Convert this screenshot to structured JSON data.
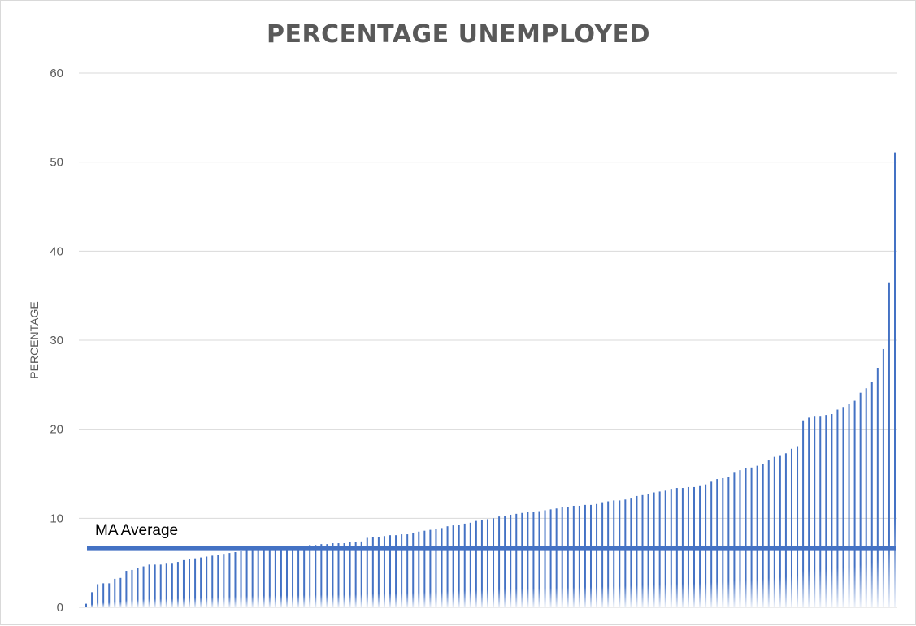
{
  "chart_data": {
    "type": "bar",
    "title": "PERCENTAGE UNEMPLOYED",
    "xlabel": "",
    "ylabel": "PERCENTAGE",
    "ylim": [
      0,
      60
    ],
    "yticks": [
      "0",
      "10",
      "20",
      "30",
      "40",
      "50",
      "60"
    ],
    "grid": true,
    "legend": "none",
    "bar_color": "#4472c4",
    "reference_line": {
      "label": "MA Average",
      "value": 6.6,
      "color": "#4472c4"
    },
    "values": [
      0.4,
      1.7,
      2.6,
      2.7,
      2.7,
      3.2,
      3.3,
      4.1,
      4.2,
      4.4,
      4.6,
      4.8,
      4.8,
      4.8,
      4.9,
      4.9,
      5.1,
      5.3,
      5.4,
      5.5,
      5.6,
      5.7,
      5.8,
      5.9,
      6.0,
      6.1,
      6.2,
      6.3,
      6.4,
      6.5,
      6.6,
      6.6,
      6.6,
      6.6,
      6.7,
      6.7,
      6.8,
      6.8,
      6.9,
      7.0,
      7.0,
      7.1,
      7.1,
      7.2,
      7.2,
      7.2,
      7.3,
      7.3,
      7.4,
      7.8,
      7.9,
      7.9,
      8.0,
      8.1,
      8.1,
      8.2,
      8.2,
      8.3,
      8.5,
      8.6,
      8.7,
      8.8,
      8.9,
      9.1,
      9.2,
      9.3,
      9.4,
      9.5,
      9.7,
      9.8,
      9.9,
      10.0,
      10.2,
      10.3,
      10.4,
      10.5,
      10.6,
      10.7,
      10.7,
      10.8,
      10.9,
      11.0,
      11.1,
      11.3,
      11.3,
      11.4,
      11.4,
      11.5,
      11.5,
      11.6,
      11.8,
      11.9,
      12.0,
      12.0,
      12.1,
      12.3,
      12.5,
      12.6,
      12.7,
      12.9,
      13.0,
      13.1,
      13.3,
      13.4,
      13.4,
      13.5,
      13.5,
      13.7,
      13.8,
      14.1,
      14.4,
      14.5,
      14.6,
      15.2,
      15.4,
      15.6,
      15.7,
      15.9,
      16.1,
      16.5,
      16.9,
      17.0,
      17.3,
      17.8,
      18.1,
      21.0,
      21.3,
      21.5,
      21.5,
      21.6,
      21.7,
      22.2,
      22.5,
      22.8,
      23.2,
      24.1,
      24.6,
      25.3,
      26.9,
      29.0,
      36.5,
      51.1
    ]
  }
}
